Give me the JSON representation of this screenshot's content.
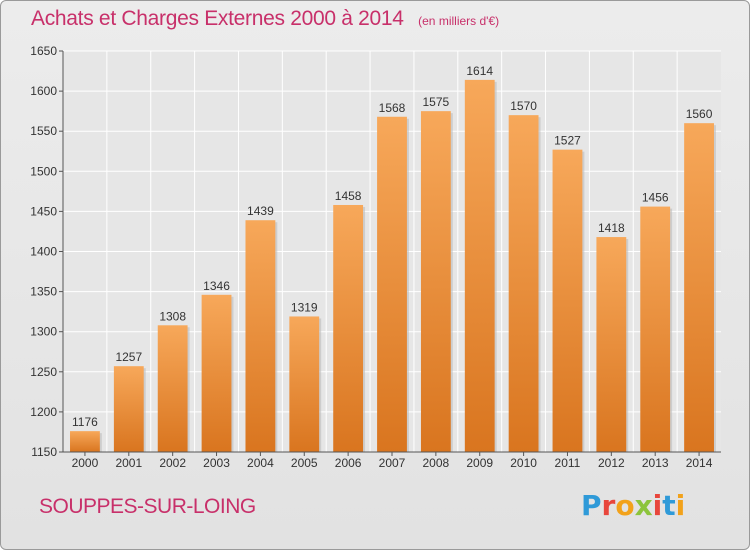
{
  "header": {
    "title": "Achats et Charges Externes 2000 à 2014",
    "subtitle": "(en milliers d'€)"
  },
  "footer": {
    "commune": "SOUPPES-SUR-LOING",
    "logo_letters": [
      "P",
      "r",
      "o",
      "x",
      "i",
      "t",
      "i"
    ],
    "logo_colors": [
      "#2f9ad8",
      "#e8463c",
      "#f2a21b",
      "#8cc43c",
      "#e8463c",
      "#2f9ad8",
      "#f2a21b"
    ]
  },
  "chart_data": {
    "type": "bar",
    "title": "Achats et Charges Externes 2000 à 2014",
    "subtitle": "(en milliers d'€)",
    "categories": [
      "2000",
      "2001",
      "2002",
      "2003",
      "2004",
      "2005",
      "2006",
      "2007",
      "2008",
      "2009",
      "2010",
      "2011",
      "2012",
      "2013",
      "2014"
    ],
    "values": [
      1176,
      1257,
      1308,
      1346,
      1439,
      1319,
      1458,
      1568,
      1575,
      1614,
      1570,
      1527,
      1418,
      1456,
      1560
    ],
    "ylim": [
      1150,
      1650
    ],
    "yticks": [
      1150,
      1200,
      1250,
      1300,
      1350,
      1400,
      1450,
      1500,
      1550,
      1600,
      1650
    ],
    "grid": true,
    "bar_color_top": "#f7a85a",
    "bar_color_bottom": "#d9751f",
    "accent_color": "#c8306a"
  }
}
